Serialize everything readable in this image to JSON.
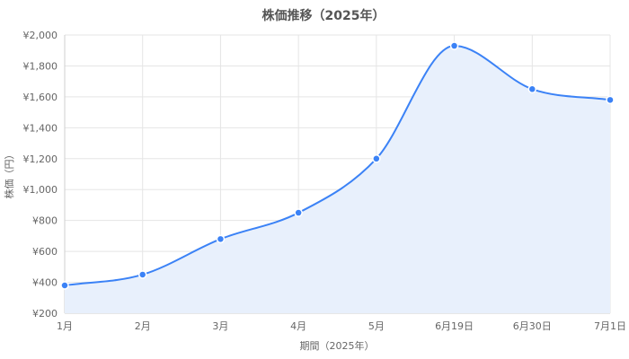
{
  "chart_data": {
    "type": "area",
    "title": "株価推移（2025年）",
    "xlabel": "期間（2025年）",
    "ylabel": "株価（円）",
    "categories": [
      "1月",
      "2月",
      "3月",
      "4月",
      "5月",
      "6月19日",
      "6月30日",
      "7月1日"
    ],
    "y_tick_labels": [
      "¥200",
      "¥400",
      "¥600",
      "¥800",
      "¥1,000",
      "¥1,200",
      "¥1,400",
      "¥1,600",
      "¥1,800",
      "¥2,000"
    ],
    "ylim": [
      200,
      2000
    ],
    "y_tick_step": 200,
    "grid": true,
    "legend": "none",
    "series": [
      {
        "values": [
          380,
          450,
          680,
          850,
          1200,
          1930,
          1650,
          1580
        ],
        "color": "#3b82f6",
        "fill": "#e8f0fc"
      }
    ]
  }
}
